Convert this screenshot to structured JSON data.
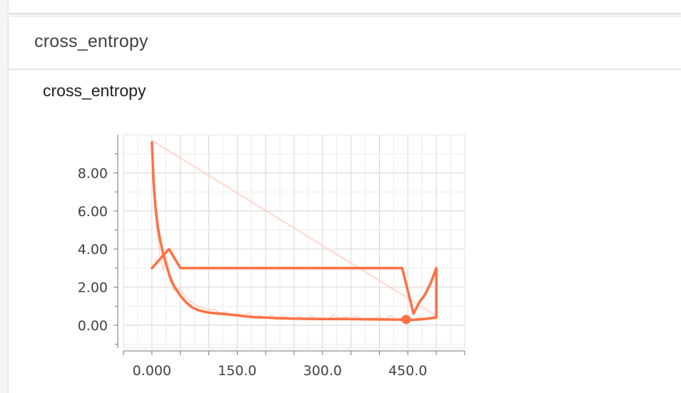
{
  "previous_card": {},
  "panel": {
    "title": "cross_entropy"
  },
  "chart_data": {
    "type": "line",
    "title": "cross_entropy",
    "xlabel": "",
    "ylabel": "",
    "xlim": [
      -50,
      550
    ],
    "ylim": [
      -1.2,
      10.0
    ],
    "x_ticks": [
      0,
      150,
      300,
      450
    ],
    "x_tick_labels": [
      "0.000",
      "150.0",
      "300.0",
      "450.0"
    ],
    "y_ticks": [
      0,
      2,
      4,
      6,
      8
    ],
    "y_tick_labels": [
      "0.00",
      "2.00",
      "4.00",
      "6.00",
      "8.00"
    ],
    "grid": true,
    "colors": {
      "smoothed": "#ff7043",
      "raw": "#ffccbc",
      "grid": "#e0e0e0",
      "axis": "#757575"
    },
    "series": [
      {
        "style": "raw",
        "x": [
          0,
          5,
          10,
          15,
          20,
          25,
          30,
          35,
          40,
          50,
          60,
          70,
          80,
          90,
          100,
          110,
          120,
          130,
          140,
          150,
          160,
          170,
          180,
          190,
          200,
          210,
          220,
          230,
          240,
          250,
          260,
          270,
          280,
          290,
          300,
          310,
          320,
          330,
          340,
          350,
          360,
          370,
          380,
          390,
          400,
          410,
          420,
          430,
          440,
          450,
          460,
          470,
          480,
          490,
          500,
          0
        ],
        "values": [
          9.7,
          6.2,
          4.8,
          3.5,
          2.9,
          3.6,
          2.5,
          2.1,
          1.8,
          1.9,
          1.4,
          1.2,
          1.0,
          0.9,
          0.8,
          0.85,
          0.6,
          0.7,
          0.5,
          0.6,
          0.45,
          0.65,
          0.4,
          0.5,
          0.35,
          0.55,
          0.3,
          0.5,
          0.4,
          0.35,
          0.45,
          0.3,
          0.5,
          0.35,
          0.4,
          0.3,
          0.55,
          0.3,
          0.45,
          0.35,
          0.5,
          0.3,
          0.4,
          0.35,
          0.45,
          0.3,
          0.5,
          0.3,
          0.4,
          0.35,
          0.3,
          0.45,
          0.35,
          0.4,
          0.5,
          9.7
        ]
      },
      {
        "style": "smoothed",
        "x": [
          0,
          3,
          6,
          10,
          15,
          20,
          25,
          30,
          35,
          40,
          50,
          60,
          70,
          80,
          90,
          100,
          120,
          140,
          160,
          180,
          200,
          230,
          260,
          300,
          340,
          380,
          420,
          460,
          480,
          500,
          500,
          490,
          480,
          470,
          460,
          440,
          400,
          300,
          200,
          100,
          50,
          30,
          0
        ],
        "values": [
          9.6,
          7.5,
          6.3,
          5.2,
          4.4,
          3.7,
          3.2,
          2.7,
          2.3,
          2.0,
          1.55,
          1.2,
          0.95,
          0.8,
          0.72,
          0.66,
          0.6,
          0.55,
          0.48,
          0.42,
          0.4,
          0.36,
          0.34,
          0.33,
          0.33,
          0.31,
          0.3,
          0.28,
          0.33,
          0.4,
          3.0,
          2.2,
          1.6,
          1.2,
          0.6,
          3.0,
          3.0,
          3.0,
          3.0,
          3.0,
          3.0,
          4.0,
          3.0
        ]
      }
    ],
    "marker": {
      "x": 447,
      "y": 0.3
    }
  }
}
